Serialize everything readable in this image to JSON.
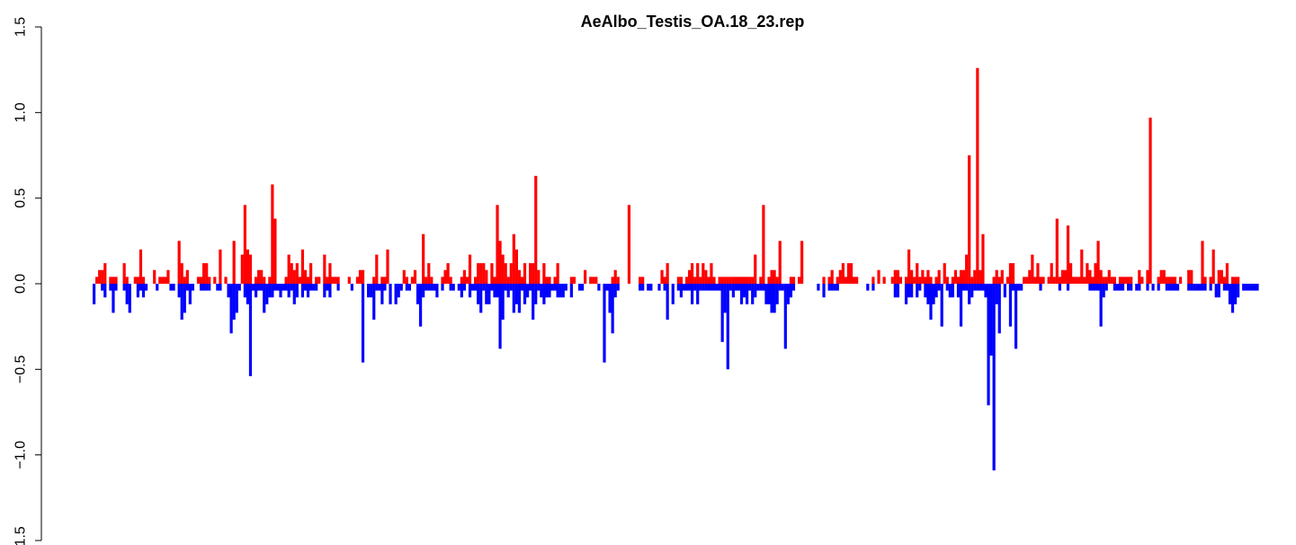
{
  "chart_data": {
    "type": "bar",
    "title": "AeAlbo_Testis_OA.18_23.rep",
    "xlabel": "",
    "ylabel": "",
    "ylim": [
      -1.5,
      1.5
    ],
    "yticks": [
      -1.5,
      -1.0,
      -0.5,
      0.0,
      0.5,
      1.0,
      1.5
    ],
    "ytick_labels": [
      "−1.5",
      "−1.0",
      "−0.5",
      "0.0",
      "0.5",
      "1.0",
      "1.5"
    ],
    "grid": false,
    "legend": "none",
    "x_axis_visible": false,
    "bar_count": 436,
    "positive_color": "#ff0000",
    "negative_color": "#0000ff",
    "series": [
      {
        "color": "#ff0000",
        "direction": "positive",
        "values": [
          0,
          0.04,
          0.08,
          0.08,
          0.12,
          0,
          0.04,
          0.04,
          0.04,
          0,
          0,
          0.12,
          0.04,
          0,
          0,
          0.04,
          0.04,
          0.2,
          0.04,
          0,
          0,
          0,
          0.08,
          0,
          0.04,
          0.04,
          0.04,
          0.08,
          0,
          0,
          0,
          0.25,
          0.12,
          0.04,
          0.08,
          0,
          0,
          0,
          0.04,
          0.04,
          0.12,
          0.12,
          0.04,
          0,
          0.04,
          0,
          0.2,
          0,
          0.04,
          0,
          0,
          0.25,
          0,
          0,
          0.17,
          0.46,
          0.2,
          0.17,
          0,
          0.04,
          0.08,
          0.08,
          0.04,
          0,
          0.04,
          0.58,
          0.38,
          0,
          0,
          0,
          0.04,
          0.17,
          0.12,
          0.08,
          0.12,
          0.04,
          0.2,
          0.08,
          0.04,
          0.12,
          0,
          0.04,
          0.04,
          0,
          0.17,
          0.04,
          0.12,
          0.04,
          0.04,
          0.04,
          0,
          0,
          0,
          0.04,
          0,
          0,
          0.04,
          0.08,
          0.08,
          0,
          0,
          0,
          0.04,
          0.17,
          0,
          0.04,
          0.04,
          0.2,
          0,
          0,
          0,
          0,
          0,
          0.08,
          0.04,
          0,
          0.04,
          0.08,
          0,
          0,
          0.29,
          0.04,
          0.12,
          0.04,
          0,
          0,
          0,
          0.04,
          0.08,
          0.12,
          0.04,
          0,
          0,
          0,
          0.04,
          0.08,
          0.04,
          0.17,
          0,
          0.04,
          0.12,
          0.12,
          0.12,
          0.08,
          0,
          0.12,
          0.04,
          0.46,
          0.25,
          0.17,
          0.12,
          0.04,
          0.12,
          0.29,
          0.2,
          0.08,
          0.04,
          0.12,
          0,
          0.12,
          0.12,
          0.63,
          0.08,
          0,
          0.12,
          0.04,
          0.04,
          0,
          0.04,
          0.12,
          0,
          0,
          0,
          0,
          0.04,
          0.04,
          0,
          0,
          0,
          0.08,
          0,
          0.04,
          0.04,
          0.04,
          0,
          0,
          0,
          0,
          0,
          0.04,
          0.08,
          0.04,
          0,
          0,
          0,
          0.46,
          0,
          0,
          0,
          0.04,
          0.04,
          0,
          0,
          0,
          0,
          0,
          0,
          0.08,
          0.04,
          0.12,
          0,
          0,
          0,
          0.04,
          0.04,
          0,
          0.04,
          0.08,
          0.12,
          0.04,
          0.12,
          0.04,
          0.12,
          0.08,
          0.04,
          0.12,
          0.04,
          0,
          0.04,
          0.04,
          0.04,
          0.04,
          0.04,
          0.04,
          0.04,
          0.04,
          0.04,
          0.04,
          0.04,
          0.04,
          0.04,
          0.17,
          0,
          0.04,
          0.46,
          0,
          0.04,
          0.08,
          0.08,
          0.04,
          0.25,
          0,
          0,
          0,
          0.04,
          0.04,
          0,
          0.04,
          0.25,
          0,
          0,
          0,
          0,
          0,
          0,
          0,
          0.04,
          0,
          0.04,
          0.08,
          0,
          0.04,
          0.08,
          0.12,
          0.04,
          0.12,
          0.12,
          0.04,
          0.04,
          0,
          0,
          0,
          0,
          0,
          0.04,
          0,
          0.08,
          0,
          0.04,
          0,
          0,
          0.04,
          0.08,
          0.08,
          0.04,
          0,
          0.04,
          0.2,
          0.08,
          0.04,
          0.12,
          0.04,
          0.08,
          0.04,
          0.08,
          0.04,
          0,
          0.04,
          0.08,
          0,
          0.12,
          0.04,
          0,
          0.04,
          0.08,
          0.04,
          0.08,
          0.08,
          0.17,
          0.75,
          0.04,
          0.08,
          1.26,
          0.08,
          0.29,
          0,
          0,
          0,
          0.04,
          0.08,
          0.04,
          0.08,
          0,
          0.04,
          0.12,
          0.12,
          0,
          0,
          0,
          0.04,
          0.04,
          0.08,
          0.17,
          0.04,
          0.12,
          0.04,
          0.04,
          0,
          0.04,
          0.12,
          0.04,
          0.38,
          0.04,
          0.08,
          0.08,
          0.34,
          0.12,
          0.04,
          0.04,
          0.04,
          0.2,
          0.04,
          0.12,
          0.08,
          0.04,
          0.12,
          0.25,
          0.08,
          0.04,
          0.04,
          0.08,
          0.04,
          0.04,
          0,
          0.04,
          0.04,
          0.04,
          0.04,
          0.04,
          0,
          0,
          0.08,
          0.04,
          0,
          0.08,
          0.97,
          0,
          0,
          0.04,
          0.08,
          0.08,
          0.04,
          0.04,
          0.04,
          0.04,
          0,
          0.04,
          0,
          0,
          0.08,
          0.08,
          0,
          0,
          0,
          0.25,
          0.04,
          0,
          0.04,
          0.2,
          0,
          0.08,
          0.08,
          0.04,
          0.12,
          0,
          0.04,
          0.04,
          0.04
        ]
      },
      {
        "color": "#0000ff",
        "direction": "negative",
        "values": [
          -0.12,
          0,
          0,
          -0.04,
          -0.08,
          0,
          -0.04,
          -0.17,
          -0.04,
          0,
          0,
          -0.04,
          -0.12,
          -0.17,
          0,
          0,
          -0.08,
          -0.04,
          -0.08,
          -0.04,
          0,
          0,
          0,
          -0.04,
          0,
          0,
          0,
          0,
          -0.04,
          -0.04,
          0,
          -0.08,
          -0.21,
          -0.17,
          -0.04,
          -0.12,
          -0.04,
          0,
          0,
          -0.04,
          -0.04,
          -0.04,
          -0.04,
          0,
          0,
          -0.04,
          -0.04,
          0,
          0,
          -0.08,
          -0.29,
          -0.21,
          -0.17,
          -0.04,
          0,
          -0.08,
          -0.12,
          -0.54,
          -0.04,
          -0.08,
          -0.04,
          -0.04,
          -0.17,
          -0.12,
          -0.08,
          -0.08,
          -0.04,
          -0.04,
          -0.08,
          -0.04,
          -0.04,
          -0.08,
          -0.04,
          -0.12,
          -0.08,
          0,
          -0.08,
          -0.04,
          -0.08,
          -0.04,
          -0.04,
          -0.04,
          0,
          0,
          -0.08,
          -0.04,
          -0.08,
          0,
          0,
          -0.04,
          0,
          0,
          0,
          0,
          -0.04,
          0,
          0,
          0,
          -0.46,
          0,
          -0.08,
          -0.08,
          -0.21,
          -0.04,
          -0.04,
          -0.12,
          -0.04,
          0,
          -0.12,
          0,
          -0.12,
          -0.08,
          -0.04,
          0,
          -0.04,
          -0.04,
          0,
          0,
          -0.12,
          -0.25,
          -0.08,
          -0.04,
          -0.04,
          -0.04,
          -0.04,
          -0.08,
          0,
          -0.04,
          0,
          0,
          -0.04,
          -0.04,
          0,
          -0.04,
          -0.08,
          -0.04,
          0,
          -0.08,
          -0.04,
          -0.04,
          -0.12,
          -0.17,
          -0.04,
          -0.12,
          -0.12,
          -0.04,
          -0.08,
          -0.08,
          -0.38,
          -0.21,
          -0.04,
          -0.08,
          -0.04,
          -0.17,
          -0.12,
          -0.17,
          -0.04,
          -0.12,
          -0.08,
          -0.04,
          -0.21,
          -0.12,
          -0.04,
          -0.08,
          -0.12,
          -0.08,
          -0.08,
          -0.04,
          -0.04,
          -0.08,
          -0.08,
          -0.08,
          -0.04,
          0,
          -0.08,
          0,
          0,
          -0.04,
          -0.04,
          0,
          0,
          0,
          0,
          0,
          -0.04,
          0,
          -0.46,
          -0.04,
          -0.17,
          -0.29,
          -0.08,
          -0.04,
          0,
          0,
          0,
          0,
          0,
          0,
          0,
          -0.04,
          -0.04,
          0,
          -0.04,
          -0.04,
          0,
          0,
          -0.04,
          0,
          -0.04,
          -0.21,
          0,
          -0.12,
          0,
          -0.04,
          -0.08,
          -0.04,
          -0.04,
          -0.04,
          -0.12,
          -0.04,
          -0.12,
          -0.04,
          -0.04,
          -0.04,
          -0.04,
          -0.04,
          -0.04,
          -0.04,
          -0.04,
          -0.34,
          -0.17,
          -0.5,
          -0.04,
          -0.08,
          -0.04,
          -0.04,
          -0.12,
          -0.08,
          -0.12,
          -0.04,
          -0.12,
          -0.08,
          -0.04,
          -0.04,
          -0.04,
          -0.12,
          -0.12,
          -0.17,
          -0.17,
          -0.12,
          -0.04,
          -0.04,
          -0.38,
          -0.12,
          -0.08,
          -0.04,
          0,
          0,
          0,
          0,
          0,
          0,
          0,
          0,
          -0.04,
          0,
          -0.08,
          0,
          -0.04,
          -0.04,
          -0.04,
          -0.04,
          0,
          0,
          0,
          0,
          0,
          0,
          0,
          0,
          0,
          0,
          -0.04,
          0,
          -0.04,
          0,
          0,
          0,
          0,
          0,
          0,
          0,
          -0.08,
          -0.08,
          0,
          0,
          -0.12,
          -0.08,
          -0.08,
          0,
          -0.08,
          -0.04,
          0,
          -0.08,
          -0.12,
          -0.21,
          -0.12,
          -0.08,
          -0.04,
          -0.25,
          0,
          -0.04,
          -0.08,
          -0.08,
          0,
          -0.08,
          -0.25,
          -0.04,
          -0.04,
          -0.12,
          -0.08,
          -0.04,
          -0.04,
          -0.04,
          -0.04,
          -0.08,
          -0.71,
          -0.42,
          -1.09,
          -0.12,
          -0.29,
          0,
          -0.08,
          0,
          -0.25,
          -0.04,
          -0.38,
          -0.04,
          -0.04,
          0,
          0,
          0,
          0,
          0,
          0,
          -0.04,
          0,
          0,
          0,
          0,
          0,
          0,
          -0.04,
          0,
          0,
          -0.04,
          0,
          0,
          0,
          0,
          0,
          0,
          0,
          -0.04,
          -0.04,
          -0.04,
          -0.04,
          -0.25,
          -0.08,
          -0.04,
          0,
          0,
          -0.04,
          -0.04,
          -0.04,
          -0.04,
          0,
          -0.04,
          -0.04,
          0,
          -0.04,
          -0.04,
          0,
          0,
          -0.04,
          0,
          -0.04,
          0,
          -0.04,
          0,
          0,
          -0.04,
          -0.04,
          -0.04,
          -0.04,
          -0.04,
          0,
          0,
          0,
          -0.04,
          -0.04,
          -0.04,
          -0.04,
          -0.04,
          -0.04,
          -0.04,
          0,
          -0.04,
          0,
          -0.08,
          -0.08,
          0,
          -0.04,
          -0.04,
          -0.12,
          -0.17,
          -0.12,
          -0.08,
          0,
          -0.04,
          -0.04,
          -0.04,
          -0.04,
          -0.04,
          -0.04
        ]
      }
    ]
  }
}
